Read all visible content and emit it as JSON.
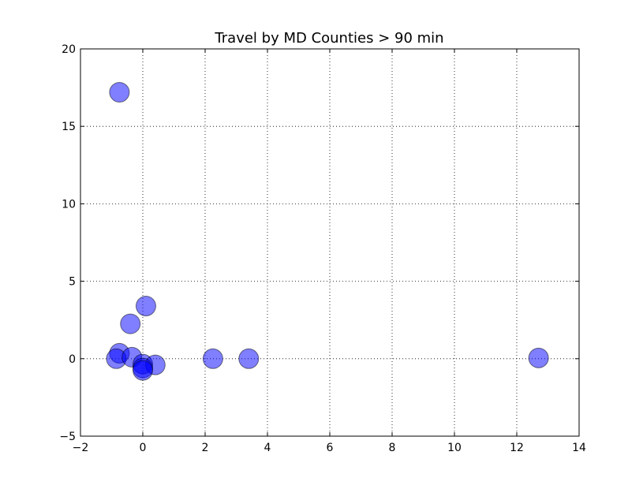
{
  "chart_data": {
    "type": "scatter",
    "title": "Travel by MD Counties > 90 min",
    "xlabel": "",
    "ylabel": "",
    "xlim": [
      -2,
      14
    ],
    "ylim": [
      -5,
      20
    ],
    "xticks": [
      -2,
      0,
      2,
      4,
      6,
      8,
      10,
      12,
      14
    ],
    "yticks": [
      -5,
      0,
      5,
      10,
      15,
      20
    ],
    "grid": true,
    "marker_color": "#0000ff",
    "marker_alpha": 0.5,
    "series": [
      {
        "points": [
          {
            "x": -0.75,
            "y": 17.2
          },
          {
            "x": 0.1,
            "y": 3.4
          },
          {
            "x": -0.4,
            "y": 2.25
          },
          {
            "x": -0.75,
            "y": 0.35
          },
          {
            "x": -0.85,
            "y": 0.0
          },
          {
            "x": -0.35,
            "y": 0.1
          },
          {
            "x": 0.0,
            "y": -0.35
          },
          {
            "x": 0.4,
            "y": -0.4
          },
          {
            "x": 0.0,
            "y": -0.6
          },
          {
            "x": 0.0,
            "y": -0.75
          },
          {
            "x": 2.25,
            "y": 0.0
          },
          {
            "x": 3.4,
            "y": 0.0
          },
          {
            "x": 12.7,
            "y": 0.05
          }
        ]
      }
    ]
  }
}
